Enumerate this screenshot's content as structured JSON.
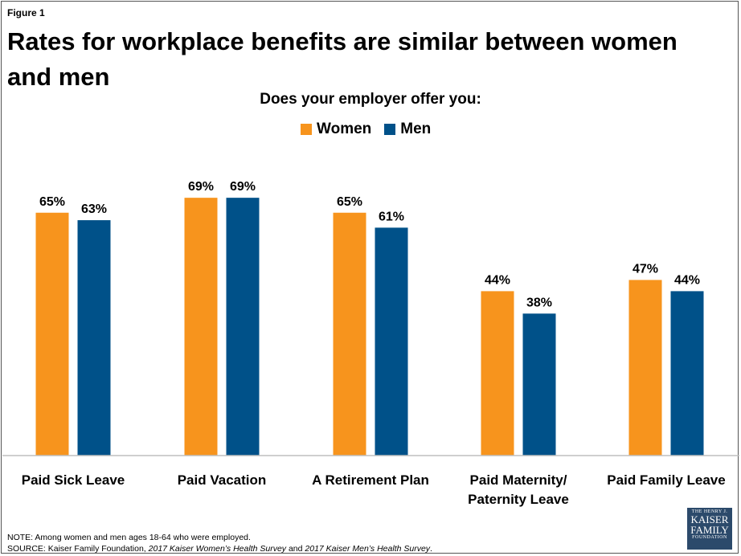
{
  "figure_label": "Figure 1",
  "title": "Rates for workplace benefits are similar between women and men",
  "note": "NOTE: Among women and men ages 18-64 who were employed.",
  "source": {
    "prefix": "SOURCE: Kaiser Family Foundation, ",
    "survey1": "2017 Kaiser Women’s Health Survey",
    "middle": " and ",
    "survey2": "2017 Kaiser Men’s Health Survey",
    "suffix": "."
  },
  "logo": {
    "line1": "THE HENRY J.",
    "line2": "KAISER",
    "line3": "FAMILY",
    "line4": "FOUNDATION"
  },
  "chart_data": {
    "type": "bar",
    "subtitle": "Does your employer offer you:",
    "categories": [
      [
        "Paid Sick Leave"
      ],
      [
        "Paid Vacation"
      ],
      [
        "A Retirement Plan"
      ],
      [
        "Paid Maternity/",
        "Paternity Leave"
      ],
      [
        "Paid Family Leave"
      ]
    ],
    "series": [
      {
        "name": "Women",
        "color": "#F7941D",
        "values": [
          65,
          69,
          65,
          44,
          47
        ]
      },
      {
        "name": "Men",
        "color": "#005189",
        "values": [
          63,
          69,
          61,
          38,
          44
        ]
      }
    ],
    "value_suffix": "%",
    "ylim": [
      0,
      100
    ],
    "grid": false,
    "legend_position": "top-center"
  }
}
